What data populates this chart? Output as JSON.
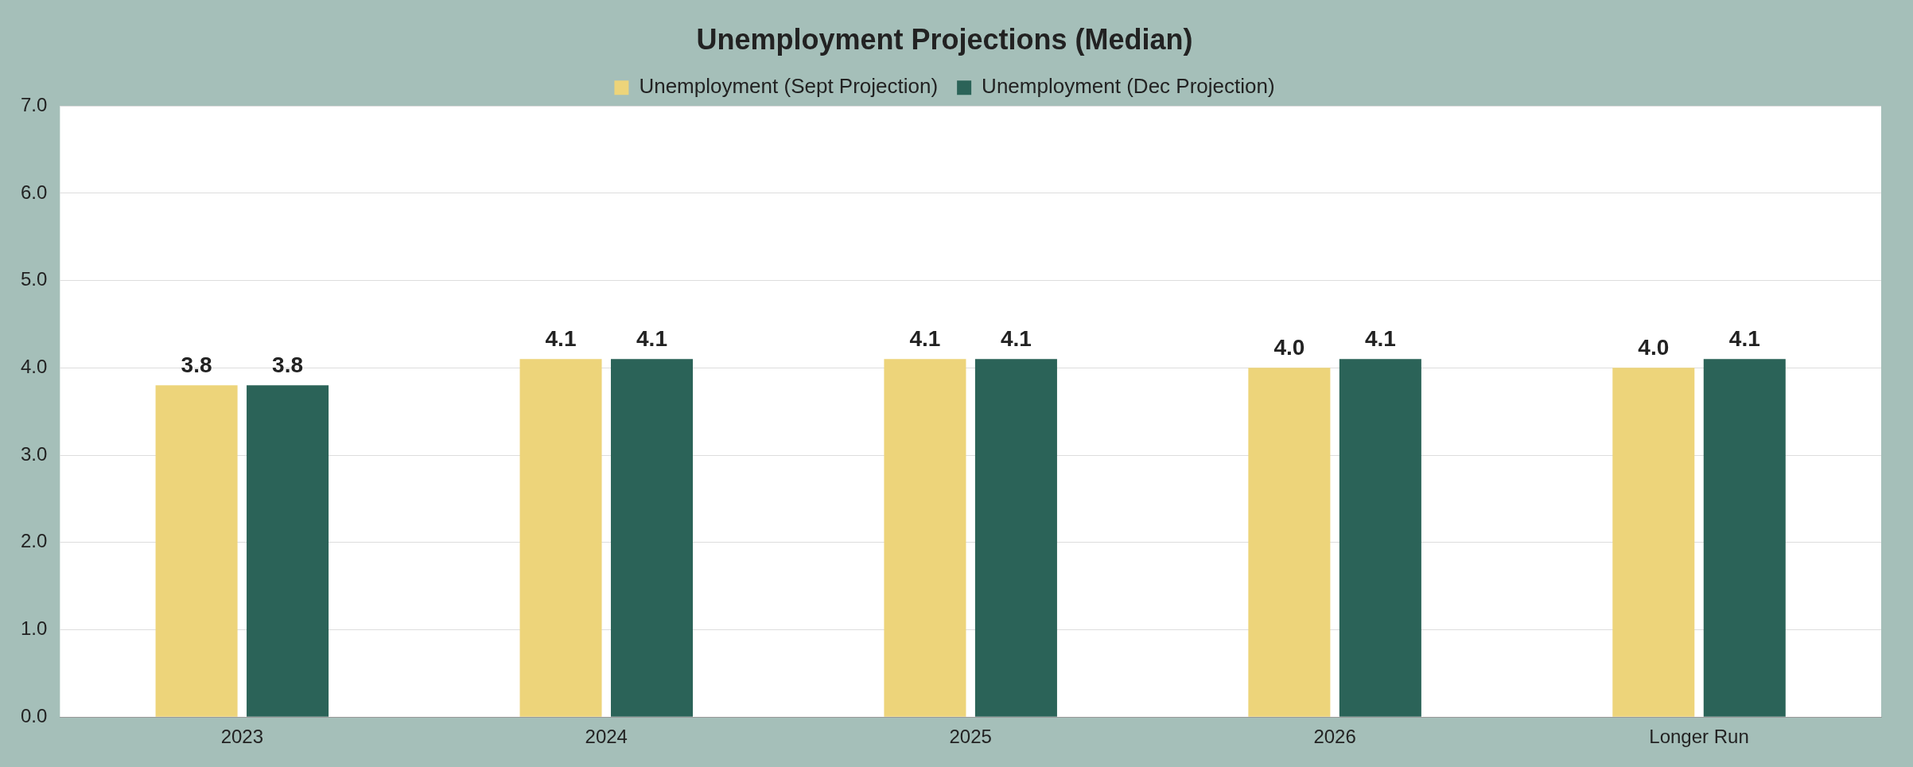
{
  "chart_data": {
    "type": "bar",
    "title": "Unemployment Projections (Median)",
    "categories": [
      "2023",
      "2024",
      "2025",
      "2026",
      "Longer Run"
    ],
    "series": [
      {
        "name": "Unemployment (Sept Projection)",
        "color": "#edd47a",
        "values": [
          3.8,
          4.1,
          4.1,
          4.0,
          4.0
        ],
        "value_labels": [
          "3.8",
          "4.1",
          "4.1",
          "4.0",
          "4.0"
        ]
      },
      {
        "name": "Unemployment (Dec Projection)",
        "color": "#2b6358",
        "values": [
          3.8,
          4.1,
          4.1,
          4.1,
          4.1
        ],
        "value_labels": [
          "3.8",
          "4.1",
          "4.1",
          "4.1",
          "4.1"
        ]
      }
    ],
    "ylim": [
      0,
      7
    ],
    "yticks": [
      {
        "value": 0,
        "label": "0.0"
      },
      {
        "value": 1,
        "label": "1.0"
      },
      {
        "value": 2,
        "label": "2.0"
      },
      {
        "value": 3,
        "label": "3.0"
      },
      {
        "value": 4,
        "label": "4.0"
      },
      {
        "value": 5,
        "label": "5.0"
      },
      {
        "value": 6,
        "label": "6.0"
      },
      {
        "value": 7,
        "label": "7.0"
      }
    ],
    "grid": "y",
    "legend": "top"
  }
}
